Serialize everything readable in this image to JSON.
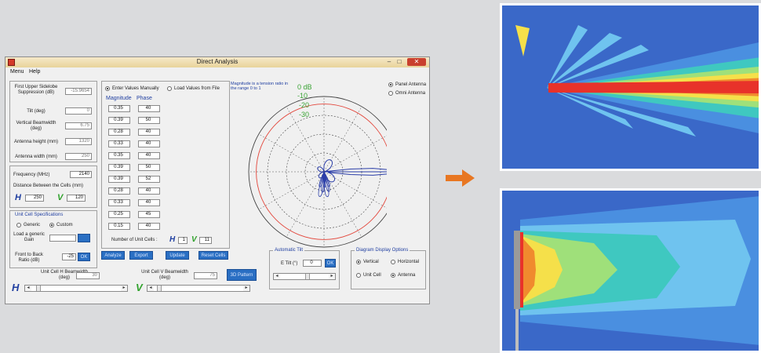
{
  "window": {
    "title": "Direct Analysis",
    "minimize": "–",
    "maximize": "□",
    "close": "✕"
  },
  "menu": {
    "items": [
      "Menu",
      "Help"
    ]
  },
  "params": {
    "sidelobe_label": "First Upper Sidelobe Suppression (dB)",
    "sidelobe_value": "-15.9654",
    "tilt_label": "Tilt (deg)",
    "tilt_value": "0",
    "vbeam_label": "Vertical Beamwidth (deg)",
    "vbeam_value": "6.75",
    "height_label": "Antenna height (mm)",
    "height_value": "1320",
    "width_label": "Antenna width (mm)",
    "width_value": "250"
  },
  "freq": {
    "freq_label": "Frequency (MHz)",
    "freq_value": "2140",
    "dist_label": "Distance Between the Cells (mm)",
    "h_symbol": "H",
    "h_value": "250",
    "v_symbol": "V",
    "v_value": "120"
  },
  "unitcell": {
    "title": "Unit Cell Specifications",
    "generic": "Generic",
    "custom": "Custom",
    "load_label": "Load a generic Gain",
    "ftb_label": "Front to Back Ratio (dB)",
    "ftb_value": "-25",
    "ok_label": "OK"
  },
  "values": {
    "opt_manual": "Enter Values Manually",
    "opt_file": "Load Values from File",
    "mag_header": "Magnitude",
    "phase_header": "Phase",
    "rows": [
      {
        "mag": "0.35",
        "phase": "40"
      },
      {
        "mag": "0.39",
        "phase": "50"
      },
      {
        "mag": "0.28",
        "phase": "40"
      },
      {
        "mag": "0.33",
        "phase": "40"
      },
      {
        "mag": "0.35",
        "phase": "40"
      },
      {
        "mag": "0.39",
        "phase": "50"
      },
      {
        "mag": "0.39",
        "phase": "52"
      },
      {
        "mag": "0.28",
        "phase": "40"
      },
      {
        "mag": "0.33",
        "phase": "40"
      },
      {
        "mag": "0.25",
        "phase": "45"
      },
      {
        "mag": "0.15",
        "phase": "40"
      }
    ],
    "num_cells_label": "Number of Unit Cells :",
    "num_h": "1",
    "num_v": "11"
  },
  "actions": {
    "analyze": "Analyze",
    "export": "Export",
    "update": "Update",
    "reset": "Reset Cells",
    "view3d": "3D Pattern"
  },
  "beam": {
    "h_label": "Unit Cell H Beamwidth (deg)",
    "h_value": "30",
    "v_label": "Unit Cell V Beamwidth (deg)",
    "v_value": "75"
  },
  "polar": {
    "note": "Magnitude is a tension ratio in the range 0 to 1",
    "ring_labels": [
      "0 dB",
      "-10",
      "-20",
      "-30"
    ],
    "colors": {
      "pattern": "#2b3ea8",
      "ring0": "#e3463b",
      "labels": "#3aa335"
    }
  },
  "antenna_type": {
    "panel": "Panel Antenna",
    "omni": "Omni Antenna"
  },
  "autotilt": {
    "title": "Automatic Tilt",
    "label": "E Tilt (°)",
    "value": "0",
    "ok": "OK"
  },
  "display_opts": {
    "title": "Diagram Display Options",
    "vertical": "Vertical",
    "horizontal": "Horizontal",
    "unitcell": "Unit Cell",
    "antenna": "Antenna"
  },
  "colors": {
    "accent": "#e87722",
    "button": "#2a6fc3"
  }
}
